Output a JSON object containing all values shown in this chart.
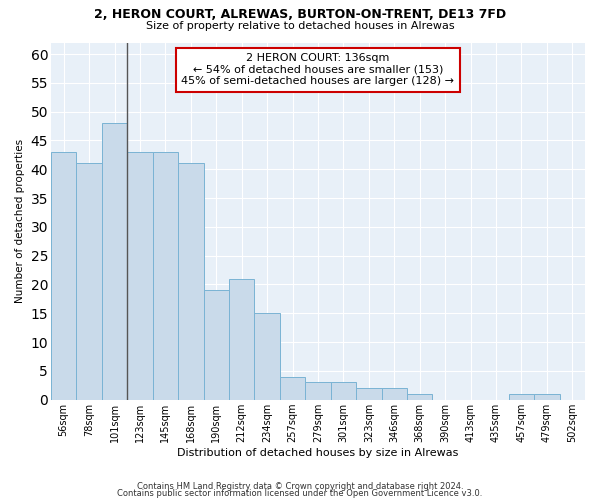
{
  "title1": "2, HERON COURT, ALREWAS, BURTON-ON-TRENT, DE13 7FD",
  "title2": "Size of property relative to detached houses in Alrewas",
  "xlabel": "Distribution of detached houses by size in Alrewas",
  "ylabel": "Number of detached properties",
  "categories": [
    "56sqm",
    "78sqm",
    "101sqm",
    "123sqm",
    "145sqm",
    "168sqm",
    "190sqm",
    "212sqm",
    "234sqm",
    "257sqm",
    "279sqm",
    "301sqm",
    "323sqm",
    "346sqm",
    "368sqm",
    "390sqm",
    "413sqm",
    "435sqm",
    "457sqm",
    "479sqm",
    "502sqm"
  ],
  "values": [
    43,
    41,
    48,
    43,
    43,
    41,
    19,
    21,
    15,
    4,
    3,
    3,
    2,
    2,
    1,
    0,
    0,
    0,
    1,
    1,
    0
  ],
  "bar_color": "#c9daea",
  "bar_edge_color": "#7ab3d4",
  "annotation_text": "2 HERON COURT: 136sqm\n← 54% of detached houses are smaller (153)\n45% of semi-detached houses are larger (128) →",
  "annotation_box_color": "#ffffff",
  "annotation_box_edge_color": "#cc0000",
  "vline_color": "#555555",
  "vline_x_index": 2.5,
  "ylim": [
    0,
    62
  ],
  "yticks": [
    0,
    5,
    10,
    15,
    20,
    25,
    30,
    35,
    40,
    45,
    50,
    55,
    60
  ],
  "bg_color": "#e8f0f8",
  "grid_color": "#ffffff",
  "footer1": "Contains HM Land Registry data © Crown copyright and database right 2024.",
  "footer2": "Contains public sector information licensed under the Open Government Licence v3.0."
}
